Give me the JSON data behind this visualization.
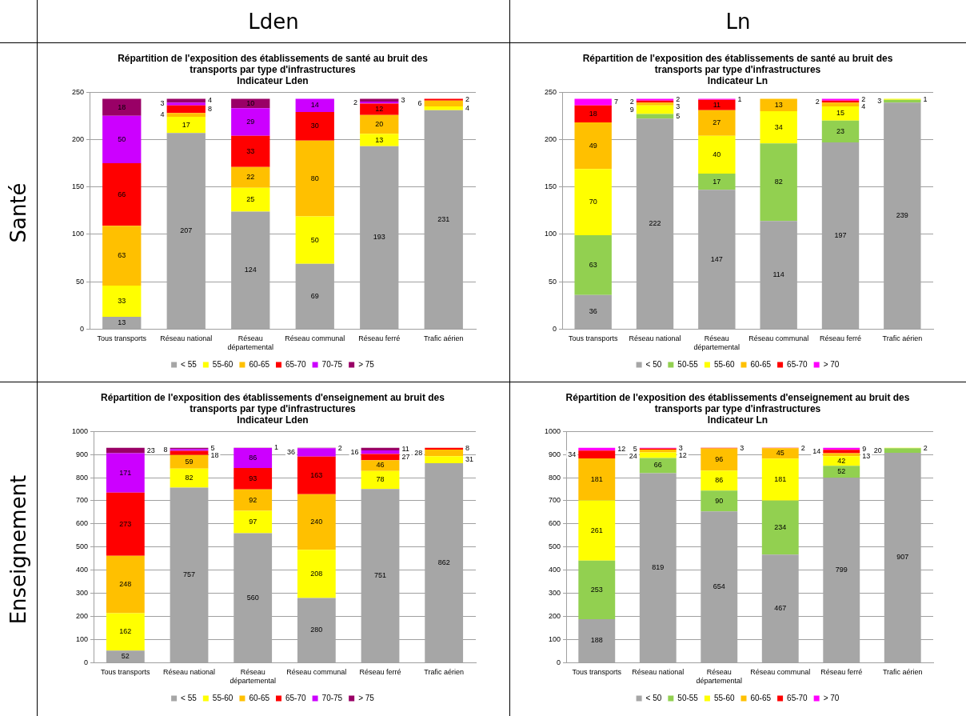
{
  "chart_data": [
    {
      "type": "bar",
      "title": "Répartition de l'exposition des établissements de santé au bruit des transports par type d'infrastructures",
      "subtitle": "Indicateur Lden",
      "annotations": [
        "Lden",
        "Santé"
      ],
      "categories": [
        "Tous transports",
        "Réseau national",
        "Réseau départemental",
        "Réseau communal",
        "Réseau ferré",
        "Trafic aérien"
      ],
      "stacked": true,
      "data_labels": true,
      "grid": "y",
      "legend": "bottom",
      "ylim": [
        0,
        250
      ],
      "yticks": [
        0,
        50,
        100,
        150,
        200,
        250
      ],
      "series": [
        {
          "name": "< 55",
          "color": "#a6a6a6",
          "values": [
            13,
            207,
            124,
            69,
            193,
            231
          ]
        },
        {
          "name": "55-60",
          "color": "#ffff00",
          "values": [
            33,
            17,
            25,
            50,
            13,
            4
          ]
        },
        {
          "name": "60-65",
          "color": "#ffc000",
          "values": [
            63,
            4,
            22,
            80,
            20,
            6
          ]
        },
        {
          "name": "65-70",
          "color": "#ff0000",
          "values": [
            66,
            8,
            33,
            30,
            12,
            2
          ]
        },
        {
          "name": "70-75",
          "color": "#cc00ff",
          "values": [
            50,
            3,
            29,
            14,
            2,
            null
          ]
        },
        {
          "name": "> 75",
          "color": "#990066",
          "values": [
            18,
            4,
            10,
            null,
            3,
            null
          ]
        }
      ]
    },
    {
      "type": "bar",
      "title": "Répartition de l'exposition des établissements de santé au bruit des transports par type d'infrastructures",
      "subtitle": "Indicateur Ln",
      "annotations": [
        "Ln"
      ],
      "categories": [
        "Tous transports",
        "Réseau national",
        "Réseau départemental",
        "Réseau communal",
        "Réseau ferré",
        "Trafic aérien"
      ],
      "stacked": true,
      "data_labels": true,
      "grid": "y",
      "legend": "bottom",
      "ylim": [
        0,
        250
      ],
      "yticks": [
        0,
        50,
        100,
        150,
        200,
        250
      ],
      "series": [
        {
          "name": "< 50",
          "color": "#a6a6a6",
          "values": [
            36,
            222,
            147,
            114,
            197,
            239
          ]
        },
        {
          "name": "50-55",
          "color": "#92d050",
          "values": [
            63,
            5,
            17,
            82,
            23,
            3
          ]
        },
        {
          "name": "55-60",
          "color": "#ffff00",
          "values": [
            70,
            9,
            40,
            34,
            15,
            1
          ]
        },
        {
          "name": "60-65",
          "color": "#ffc000",
          "values": [
            49,
            3,
            27,
            13,
            4,
            null
          ]
        },
        {
          "name": "65-70",
          "color": "#ff0000",
          "values": [
            18,
            2,
            11,
            null,
            2,
            null
          ]
        },
        {
          "name": "> 70",
          "color": "#ff00ff",
          "values": [
            7,
            2,
            1,
            null,
            2,
            null
          ]
        }
      ]
    },
    {
      "type": "bar",
      "title": "Répartition de l'exposition des établissements d'enseignement au bruit des transports par type d'infrastructures",
      "subtitle": "Indicateur Lden",
      "annotations": [
        "Enseignement"
      ],
      "categories": [
        "Tous transports",
        "Réseau national",
        "Réseau départemental",
        "Réseau communal",
        "Réseau ferré",
        "Trafic aérien"
      ],
      "stacked": true,
      "data_labels": true,
      "grid": "y",
      "legend": "bottom",
      "ylim": [
        0,
        1000
      ],
      "yticks": [
        0,
        100,
        200,
        300,
        400,
        500,
        600,
        700,
        800,
        900,
        1000
      ],
      "series": [
        {
          "name": "< 55",
          "color": "#a6a6a6",
          "values": [
            52,
            757,
            560,
            280,
            751,
            862
          ]
        },
        {
          "name": "55-60",
          "color": "#ffff00",
          "values": [
            162,
            82,
            97,
            208,
            78,
            31
          ]
        },
        {
          "name": "60-65",
          "color": "#ffc000",
          "values": [
            248,
            59,
            92,
            240,
            46,
            28
          ]
        },
        {
          "name": "65-70",
          "color": "#ff0000",
          "values": [
            273,
            18,
            93,
            163,
            27,
            8
          ]
        },
        {
          "name": "70-75",
          "color": "#cc00ff",
          "values": [
            171,
            8,
            86,
            36,
            16,
            null
          ]
        },
        {
          "name": "> 75",
          "color": "#990066",
          "values": [
            23,
            5,
            1,
            2,
            11,
            null
          ]
        }
      ]
    },
    {
      "type": "bar",
      "title": "Répartition de l'exposition des établissements d'enseignement au bruit des transports par type d'infrastructures",
      "subtitle": "Indicateur Ln",
      "categories": [
        "Tous transports",
        "Réseau national",
        "Réseau départemental",
        "Réseau communal",
        "Réseau ferré",
        "Trafic aérien"
      ],
      "stacked": true,
      "data_labels": true,
      "grid": "y",
      "legend": "bottom",
      "ylim": [
        0,
        1000
      ],
      "yticks": [
        0,
        100,
        200,
        300,
        400,
        500,
        600,
        700,
        800,
        900,
        1000
      ],
      "series": [
        {
          "name": "< 50",
          "color": "#a6a6a6",
          "values": [
            188,
            819,
            654,
            467,
            799,
            907
          ]
        },
        {
          "name": "50-55",
          "color": "#92d050",
          "values": [
            253,
            66,
            90,
            234,
            52,
            20
          ]
        },
        {
          "name": "55-60",
          "color": "#ffff00",
          "values": [
            261,
            24,
            86,
            181,
            42,
            2
          ]
        },
        {
          "name": "60-65",
          "color": "#ffc000",
          "values": [
            181,
            12,
            96,
            45,
            13,
            null
          ]
        },
        {
          "name": "65-70",
          "color": "#ff0000",
          "values": [
            34,
            5,
            3,
            2,
            14,
            null
          ]
        },
        {
          "name": "> 70",
          "color": "#ff00ff",
          "values": [
            12,
            3,
            null,
            null,
            9,
            null
          ]
        }
      ]
    }
  ]
}
